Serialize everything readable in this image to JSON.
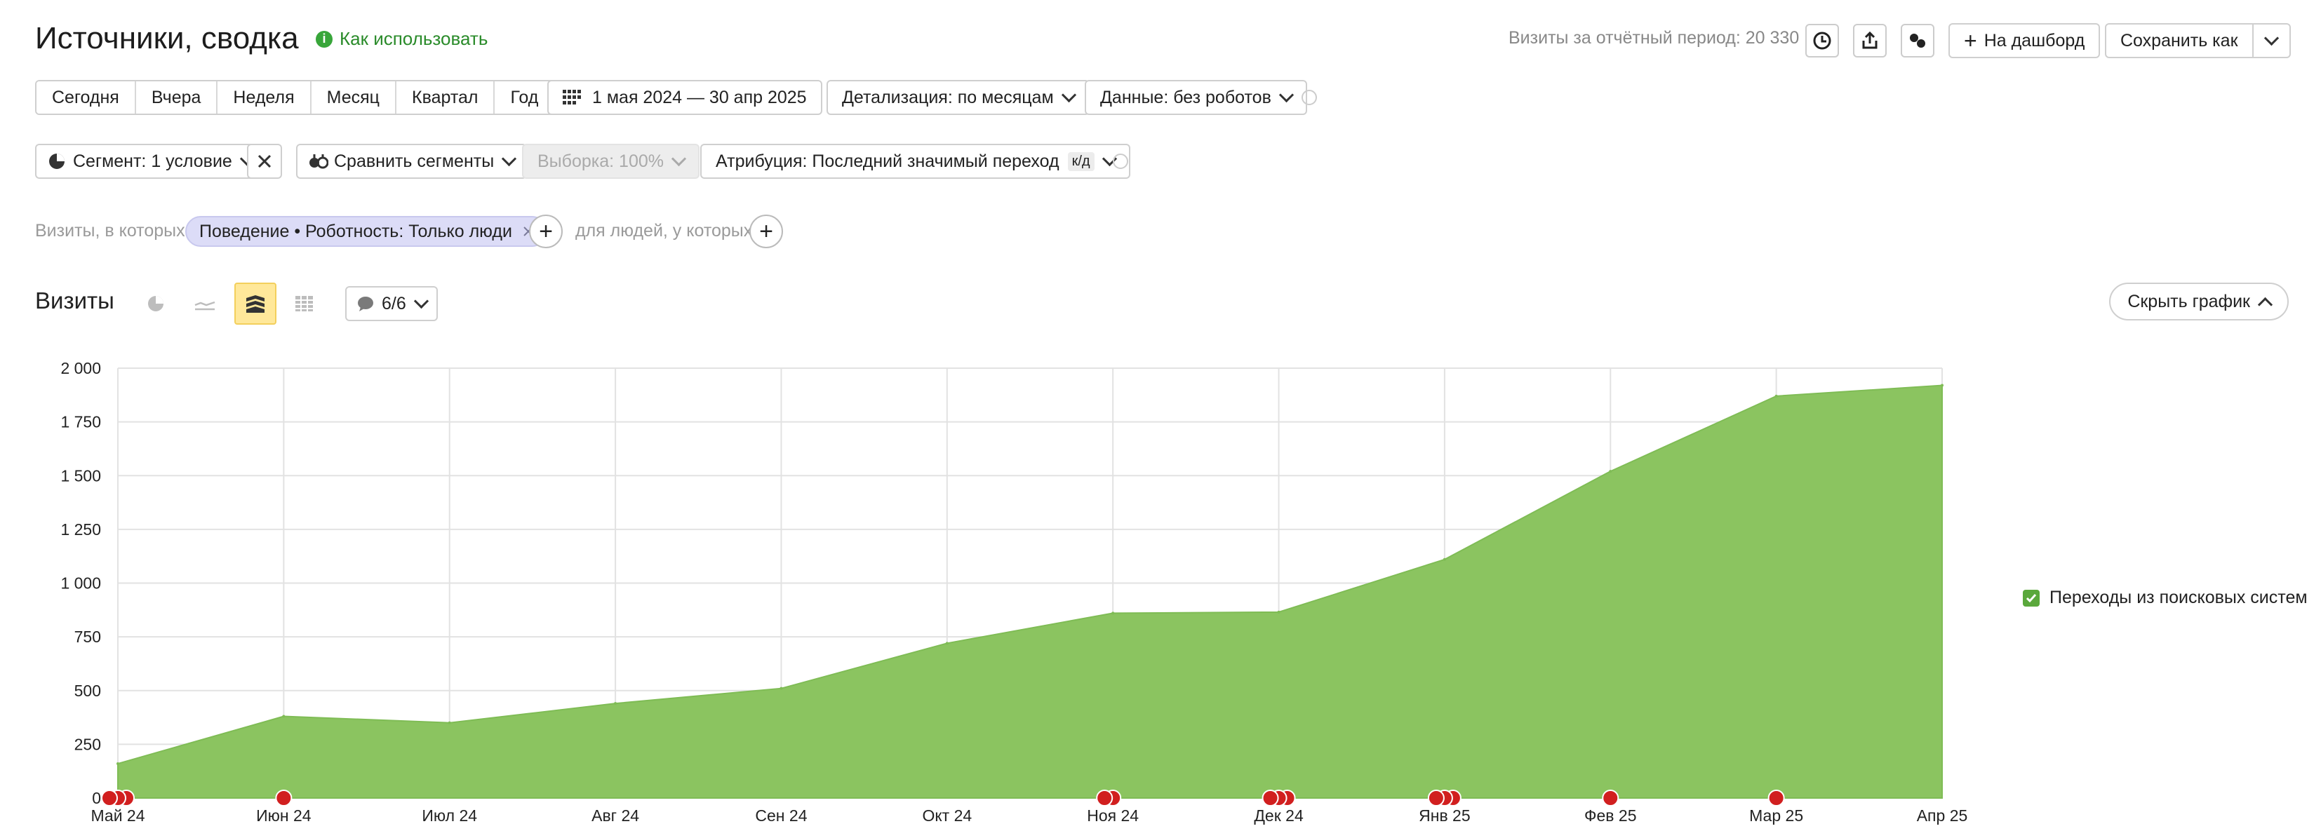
{
  "header": {
    "title": "Источники, сводка",
    "how_to": "Как использовать",
    "period_label": "Визиты за отчётный период: 20 330",
    "dashboard_button": "На дашборд",
    "save_as_button": "Сохранить как"
  },
  "toolbar": {
    "ranges": [
      "Сегодня",
      "Вчера",
      "Неделя",
      "Месяц",
      "Квартал",
      "Год"
    ],
    "date_range": "1 мая 2024 — 30 апр 2025",
    "detail": "Детализация: по месяцам",
    "data_filter": "Данные: без роботов"
  },
  "filters": {
    "segment": "Сегмент: 1 условие",
    "compare": "Сравнить сегменты",
    "sample": "Выборка: 100%",
    "attribution": "Атрибуция: Последний значимый переход",
    "attribution_badge": "к/д",
    "visits_prefix": "Визиты, в которых",
    "condition_chip": "Поведение • Роботность: Только люди",
    "people_prefix": "для людей, у которых"
  },
  "chart_header": {
    "title": "Визиты",
    "notes_count": "6/6",
    "hide_chart": "Скрыть график"
  },
  "colors": {
    "accent_green": "#8bc460",
    "link_green": "#2a8b2a",
    "chip_bg": "#dcdcf7",
    "active_view_bg": "#ffe89a",
    "marker_red": "#d11f1f"
  },
  "chart_data": {
    "type": "area",
    "categories": [
      "Май 24",
      "Июн 24",
      "Июл 24",
      "Авг 24",
      "Сен 24",
      "Окт 24",
      "Ноя 24",
      "Дек 24",
      "Янв 25",
      "Фев 25",
      "Мар 25",
      "Апр 25"
    ],
    "series": [
      {
        "name": "Переходы из поисковых систем",
        "values": [
          160,
          380,
          350,
          440,
          510,
          720,
          860,
          865,
          1110,
          1520,
          1870,
          1920
        ],
        "color": "#8bc460"
      }
    ],
    "ylim": [
      0,
      2000
    ],
    "yticks": [
      0,
      250,
      500,
      750,
      1000,
      1250,
      1500,
      1750,
      2000
    ],
    "ytick_labels": [
      "0",
      "250",
      "500",
      "750",
      "1 000",
      "1 250",
      "1 500",
      "1 750",
      "2 000"
    ],
    "grid": true,
    "legend_position": "right",
    "annotation_markers": [
      {
        "x": "Май 24",
        "count": 3
      },
      {
        "x": "Июн 24",
        "count": 1
      },
      {
        "x": "Ноя 24",
        "count": 2
      },
      {
        "x": "Дек 24",
        "count": 3
      },
      {
        "x": "Янв 25",
        "count": 3
      },
      {
        "x": "Фев 25",
        "count": 1
      },
      {
        "x": "Мар 25",
        "count": 1
      }
    ]
  }
}
